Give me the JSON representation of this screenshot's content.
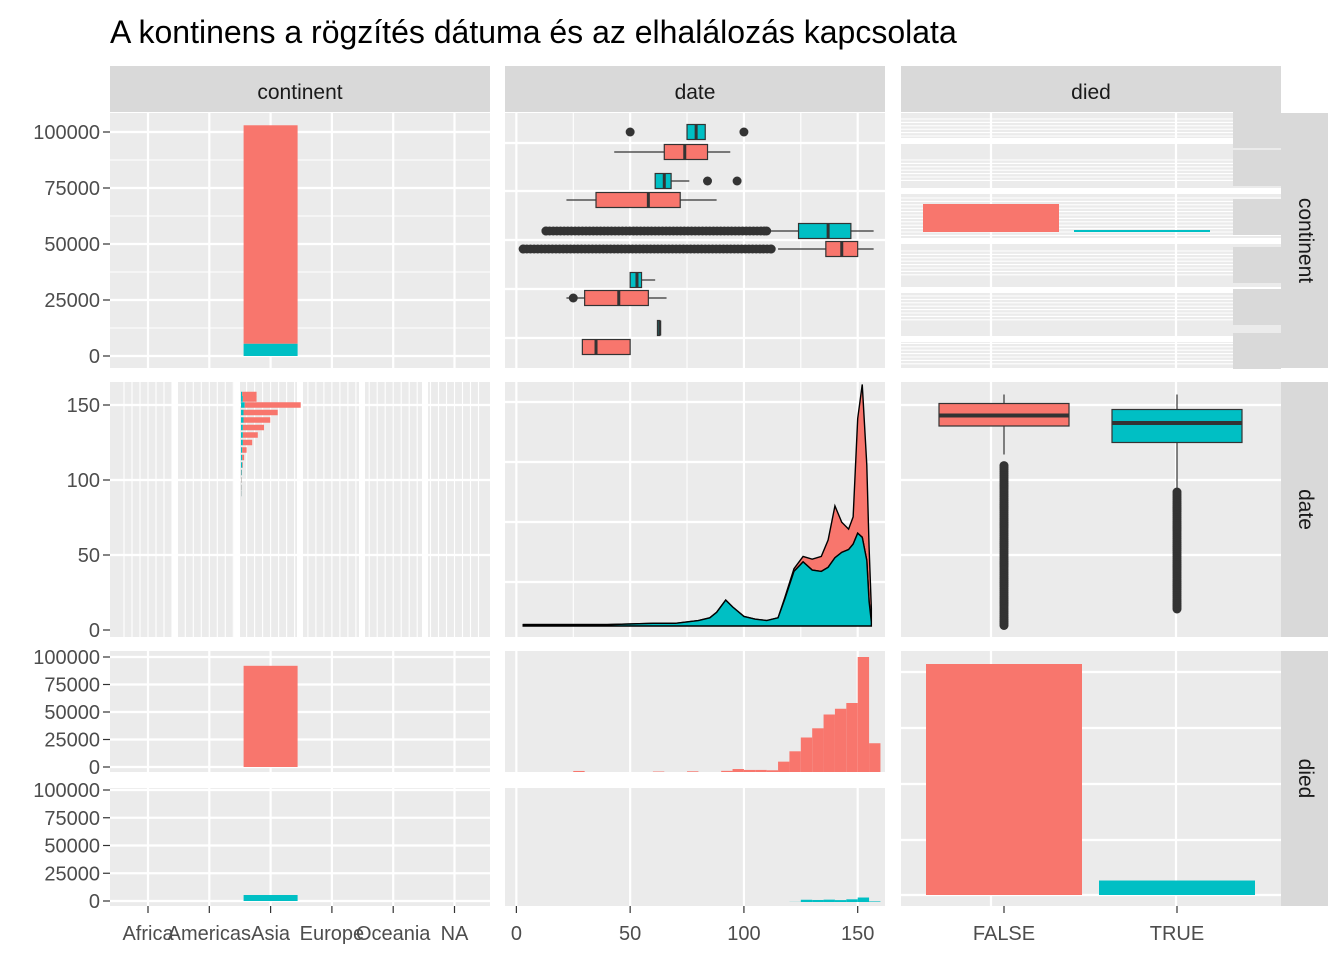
{
  "title": "A kontinens a rögzítés dátuma és az elhalálozás kapcsolata",
  "colors": {
    "FALSE": "#F8766D",
    "TRUE": "#00BFC4",
    "outline": "#333333"
  },
  "strips": {
    "columns": [
      "continent",
      "date",
      "died"
    ],
    "rows": [
      "continent",
      "date",
      "died"
    ]
  },
  "chart_data": {
    "type": "pairs",
    "variables": [
      "continent",
      "date",
      "died"
    ],
    "fill": "died",
    "legend": "none",
    "continent_levels": [
      "Africa",
      "Americas",
      "Asia",
      "Europe",
      "Oceania",
      "NA"
    ],
    "died_levels": [
      "FALSE",
      "TRUE"
    ],
    "count_axis": {
      "ticks": [
        0,
        25000,
        50000,
        75000,
        100000
      ],
      "labels": [
        "0",
        "25000",
        "50000",
        "75000",
        "100000"
      ]
    },
    "date_axis": {
      "ticks": [
        0,
        50,
        100,
        150
      ],
      "labels": [
        "0",
        "50",
        "100",
        "150"
      ],
      "range": [
        -5,
        162
      ]
    },
    "continent_counts": {
      "categories": [
        "Africa",
        "Americas",
        "Asia",
        "Europe",
        "Oceania",
        "NA"
      ],
      "series": [
        {
          "name": "FALSE",
          "values": [
            0,
            0,
            97500,
            0,
            0,
            0
          ]
        },
        {
          "name": "TRUE",
          "values": [
            0,
            0,
            5500,
            0,
            0,
            0
          ]
        }
      ]
    },
    "died_counts": {
      "FALSE": 92500,
      "TRUE": 5800
    },
    "date_by_continent_boxplots": [
      {
        "continent": "Africa",
        "died": "TRUE",
        "q1": 75,
        "median": 79,
        "q3": 83,
        "lo": 75,
        "hi": 83,
        "outliers": [
          50,
          100
        ]
      },
      {
        "continent": "Africa",
        "died": "FALSE",
        "q1": 65,
        "median": 74,
        "q3": 84,
        "lo": 43,
        "hi": 94,
        "outliers": []
      },
      {
        "continent": "Americas",
        "died": "TRUE",
        "q1": 61,
        "median": 65,
        "q3": 68,
        "lo": 61,
        "hi": 76,
        "outliers": [
          84,
          97
        ]
      },
      {
        "continent": "Americas",
        "died": "FALSE",
        "q1": 35,
        "median": 58,
        "q3": 72,
        "lo": 22,
        "hi": 88,
        "outliers": []
      },
      {
        "continent": "Asia",
        "died": "TRUE",
        "q1": 124,
        "median": 137,
        "q3": 147,
        "lo": 92,
        "hi": 157,
        "outliers": [
          13,
          110
        ]
      },
      {
        "continent": "Asia",
        "died": "FALSE",
        "q1": 136,
        "median": 143,
        "q3": 150,
        "lo": 115,
        "hi": 157,
        "outliers": [
          3,
          112
        ]
      },
      {
        "continent": "Europe",
        "died": "TRUE",
        "q1": 50,
        "median": 53,
        "q3": 55,
        "lo": 50,
        "hi": 61,
        "outliers": []
      },
      {
        "continent": "Europe",
        "died": "FALSE",
        "q1": 30,
        "median": 45,
        "q3": 58,
        "lo": 22,
        "hi": 66,
        "outliers": [
          25
        ]
      },
      {
        "continent": "Oceania",
        "died": "TRUE",
        "q1": 62,
        "median": 63,
        "q3": 63,
        "lo": 62,
        "hi": 63,
        "outliers": []
      },
      {
        "continent": "NA",
        "died": "FALSE",
        "q1": 29,
        "median": 35,
        "q3": 50,
        "lo": 29,
        "hi": 50,
        "outliers": []
      }
    ],
    "date_density": {
      "x": [
        3,
        20,
        40,
        60,
        70,
        75,
        80,
        85,
        88,
        92,
        95,
        100,
        105,
        110,
        115,
        118,
        122,
        126,
        130,
        134,
        137,
        140,
        143,
        146,
        148,
        150,
        152,
        154,
        155,
        156
      ],
      "series": [
        {
          "name": "TRUE",
          "values": [
            1,
            1,
            1,
            2,
            2,
            3,
            4,
            6,
            10,
            19,
            14,
            7,
            5,
            4,
            6,
            20,
            40,
            47,
            41,
            40,
            43,
            50,
            54,
            56,
            60,
            68,
            65,
            48,
            18,
            3
          ]
        },
        {
          "name": "FALSE",
          "values": [
            0,
            0,
            0,
            0,
            0,
            0,
            0,
            0,
            0,
            0,
            0,
            0,
            0,
            0,
            0,
            1,
            2,
            4,
            8,
            11,
            20,
            38,
            22,
            15,
            20,
            84,
            112,
            70,
            40,
            10
          ]
        }
      ]
    },
    "date_by_died_boxplots": [
      {
        "died": "FALSE",
        "q1": 136,
        "median": 143,
        "q3": 151,
        "lo": 117,
        "hi": 157,
        "outlier_range": [
          3,
          110
        ]
      },
      {
        "died": "TRUE",
        "q1": 125,
        "median": 138,
        "q3": 147,
        "lo": 92,
        "hi": 157,
        "outlier_range": [
          14,
          92
        ]
      }
    ],
    "date_histogram_by_died": {
      "bin_starts": [
        20,
        25,
        40,
        55,
        60,
        65,
        70,
        75,
        80,
        85,
        90,
        95,
        100,
        105,
        110,
        115,
        120,
        125,
        130,
        135,
        140,
        145,
        150,
        155
      ],
      "bin_width": 5,
      "series": [
        {
          "name": "FALSE",
          "values": [
            0,
            900,
            0,
            0,
            400,
            0,
            0,
            600,
            0,
            0,
            1000,
            2600,
            1800,
            1800,
            1500,
            9000,
            18000,
            30000,
            38000,
            50000,
            55000,
            60000,
            100000,
            25000
          ]
        },
        {
          "name": "TRUE",
          "values": [
            0,
            0,
            0,
            0,
            0,
            0,
            0,
            0,
            0,
            0,
            0,
            0,
            0,
            0,
            0,
            0,
            100,
            2000,
            1800,
            2100,
            1700,
            2400,
            4000,
            500
          ]
        }
      ]
    },
    "continent_by_date_bars": [
      {
        "date": 157,
        "FALSE": 2300,
        "TRUE": 200
      },
      {
        "date": 154,
        "FALSE": 2200,
        "TRUE": 300
      },
      {
        "date": 150,
        "FALSE": 9000,
        "TRUE": 600
      },
      {
        "date": 145,
        "FALSE": 5500,
        "TRUE": 400
      },
      {
        "date": 140,
        "FALSE": 4300,
        "TRUE": 400
      },
      {
        "date": 135,
        "FALSE": 3400,
        "TRUE": 300
      },
      {
        "date": 130,
        "FALSE": 2400,
        "TRUE": 300
      },
      {
        "date": 125,
        "FALSE": 1500,
        "TRUE": 300
      },
      {
        "date": 120,
        "FALSE": 700,
        "TRUE": 200
      },
      {
        "date": 115,
        "FALSE": 300,
        "TRUE": 200
      },
      {
        "date": 110,
        "FALSE": 100,
        "TRUE": 200
      },
      {
        "date": 105,
        "FALSE": 50,
        "TRUE": 100
      },
      {
        "date": 100,
        "FALSE": 50,
        "TRUE": 50
      },
      {
        "date": 95,
        "FALSE": 40,
        "TRUE": 50
      },
      {
        "date": 91,
        "FALSE": 30,
        "TRUE": 50
      }
    ],
    "died_by_continent_bars": [
      {
        "continent": "Asia",
        "FALSE": 92000,
        "TRUE": 5400
      }
    ]
  }
}
